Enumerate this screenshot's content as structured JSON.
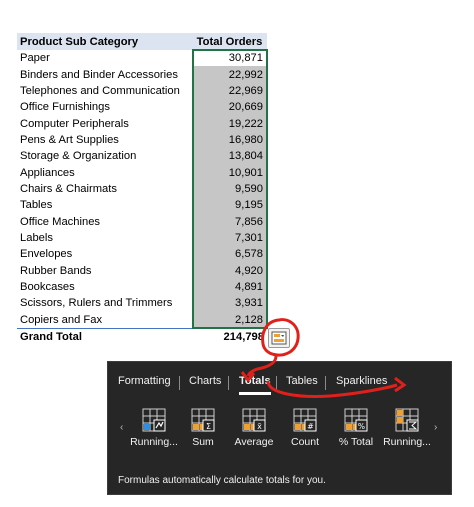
{
  "table": {
    "header": {
      "category": "Product Sub Category",
      "value": "Total Orders"
    },
    "rows": [
      {
        "category": "Paper",
        "value": "30,871"
      },
      {
        "category": "Binders and Binder Accessories",
        "value": "22,992"
      },
      {
        "category": "Telephones and Communication",
        "value": "22,969"
      },
      {
        "category": "Office Furnishings",
        "value": "20,669"
      },
      {
        "category": "Computer Peripherals",
        "value": "19,222"
      },
      {
        "category": "Pens & Art Supplies",
        "value": "16,980"
      },
      {
        "category": "Storage & Organization",
        "value": "13,804"
      },
      {
        "category": "Appliances",
        "value": "10,901"
      },
      {
        "category": "Chairs & Chairmats",
        "value": "9,590"
      },
      {
        "category": "Tables",
        "value": "9,195"
      },
      {
        "category": "Office Machines",
        "value": "7,856"
      },
      {
        "category": "Labels",
        "value": "7,301"
      },
      {
        "category": "Envelopes",
        "value": "6,578"
      },
      {
        "category": "Rubber Bands",
        "value": "4,920"
      },
      {
        "category": "Bookcases",
        "value": "4,891"
      },
      {
        "category": "Scissors, Rulers and Trimmers",
        "value": "3,931"
      },
      {
        "category": "Copiers and Fax",
        "value": "2,128"
      }
    ],
    "total": {
      "category": "Grand Total",
      "value": "214,798"
    }
  },
  "quick_analysis": {
    "tabs": [
      {
        "label": "Formatting",
        "active": false
      },
      {
        "label": "Charts",
        "active": false
      },
      {
        "label": "Totals",
        "active": true
      },
      {
        "label": "Tables",
        "active": false
      },
      {
        "label": "Sparklines",
        "active": false
      }
    ],
    "items": [
      {
        "label": "Running...",
        "icon": "running-total-rows-icon"
      },
      {
        "label": "Sum",
        "icon": "sum-icon"
      },
      {
        "label": "Average",
        "icon": "average-icon"
      },
      {
        "label": "Count",
        "icon": "count-icon"
      },
      {
        "label": "% Total",
        "icon": "percent-total-icon"
      },
      {
        "label": "Running...",
        "icon": "running-total-columns-icon"
      }
    ],
    "footer": "Formulas automatically calculate totals for you."
  },
  "colors": {
    "header_fill": "#dde4f1",
    "databar_fill": "#c6c6c6",
    "selection_border": "#217346",
    "panel_bg": "#262626",
    "annotation_red": "#e0201b",
    "icon_orange": "#f0a030",
    "icon_blue": "#2e8ee0"
  }
}
